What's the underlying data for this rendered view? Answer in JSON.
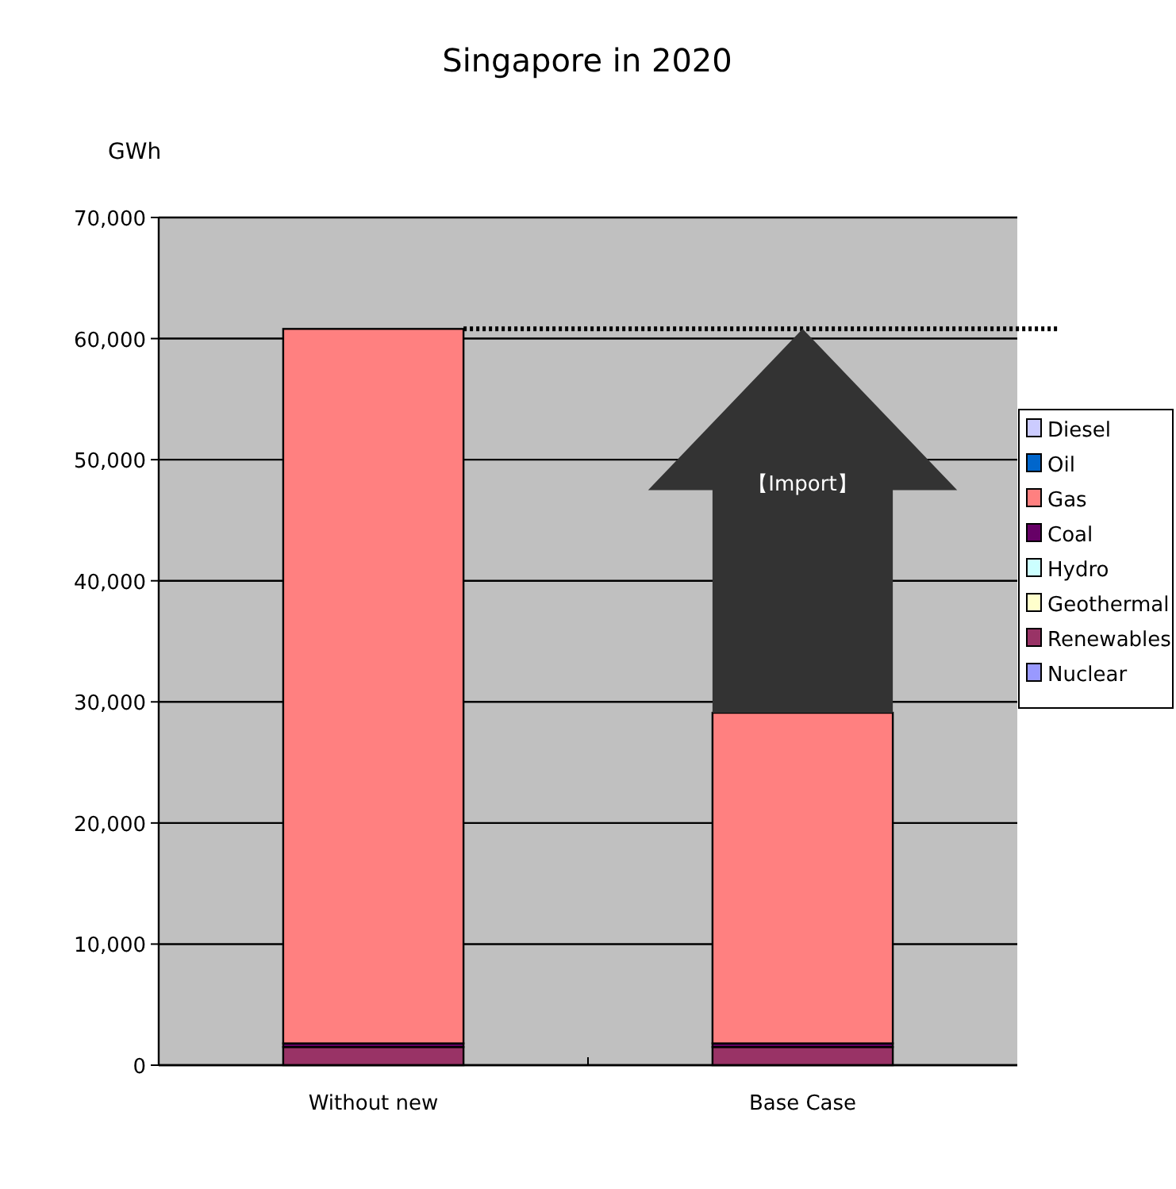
{
  "chart_data": {
    "type": "bar",
    "title": "Singapore in 2020",
    "ylabel": "GWh",
    "categories": [
      "Without new",
      "Base Case"
    ],
    "stacked": true,
    "series": [
      {
        "name": "Nuclear",
        "color": "#9999ff",
        "values": [
          0,
          0
        ]
      },
      {
        "name": "Renewables",
        "color": "#993366",
        "values": [
          1500,
          1500
        ]
      },
      {
        "name": "Geothermal",
        "color": "#ffffcc",
        "values": [
          0,
          0
        ]
      },
      {
        "name": "Hydro",
        "color": "#ccffff",
        "values": [
          0,
          0
        ]
      },
      {
        "name": "Coal",
        "color": "#660066",
        "values": [
          300,
          300
        ]
      },
      {
        "name": "Gas",
        "color": "#ff8080",
        "values": [
          59000,
          27300
        ]
      },
      {
        "name": "Oil",
        "color": "#0066cc",
        "values": [
          0,
          0
        ]
      },
      {
        "name": "Diesel",
        "color": "#ccccff",
        "values": [
          0,
          0
        ]
      }
    ],
    "ylim": [
      0,
      70000
    ],
    "yticks": [
      {
        "value": 0,
        "label": "0"
      },
      {
        "value": 10000,
        "label": "10,000"
      },
      {
        "value": 20000,
        "label": "20,000"
      },
      {
        "value": 30000,
        "label": "30,000"
      },
      {
        "value": 40000,
        "label": "40,000"
      },
      {
        "value": 50000,
        "label": "50,000"
      },
      {
        "value": 60000,
        "label": "60,000"
      },
      {
        "value": 70000,
        "label": "70,000"
      }
    ],
    "grid": "y",
    "legend": "right",
    "ref_lines": [
      {
        "axis": "y",
        "value": 60800,
        "line_style": "dotted",
        "color": "#000000"
      }
    ],
    "annotations": [
      "【Import】"
    ]
  }
}
